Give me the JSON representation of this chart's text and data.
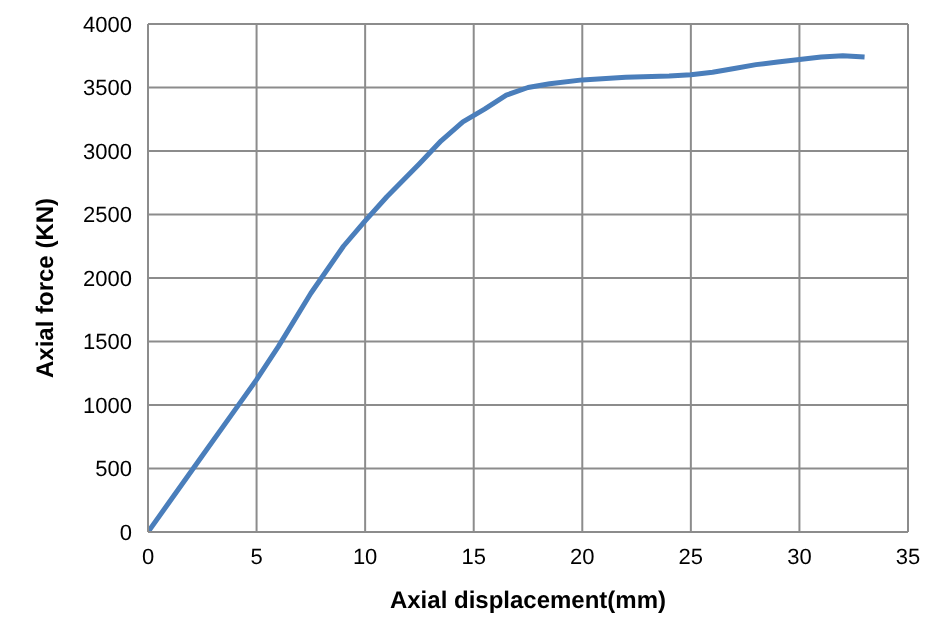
{
  "chart_data": {
    "type": "line",
    "xlabel": "Axial displacement(mm)",
    "ylabel": "Axial force (KN)",
    "x": [
      0,
      1,
      2.5,
      4,
      5,
      6,
      7.5,
      9,
      10,
      11,
      12.5,
      13.5,
      14.5,
      15.5,
      16.5,
      17.5,
      18.5,
      20,
      22,
      24,
      25,
      26,
      27,
      28,
      29,
      30,
      31,
      32,
      33
    ],
    "series": [
      {
        "color": "#4a7ebb",
        "values": [
          0,
          240,
          600,
          960,
          1200,
          1460,
          1880,
          2250,
          2450,
          2640,
          2900,
          3080,
          3230,
          3330,
          3440,
          3500,
          3530,
          3560,
          3580,
          3590,
          3600,
          3620,
          3650,
          3680,
          3700,
          3720,
          3740,
          3750,
          3740
        ]
      }
    ],
    "xlim": [
      0,
      35
    ],
    "xticks": [
      0,
      5,
      10,
      15,
      20,
      25,
      30,
      35
    ],
    "ylim": [
      0,
      4000
    ],
    "yticks": [
      0,
      500,
      1000,
      1500,
      2000,
      2500,
      3000,
      3500,
      4000
    ],
    "grid": true,
    "marker": "none",
    "line_style": "solid"
  }
}
